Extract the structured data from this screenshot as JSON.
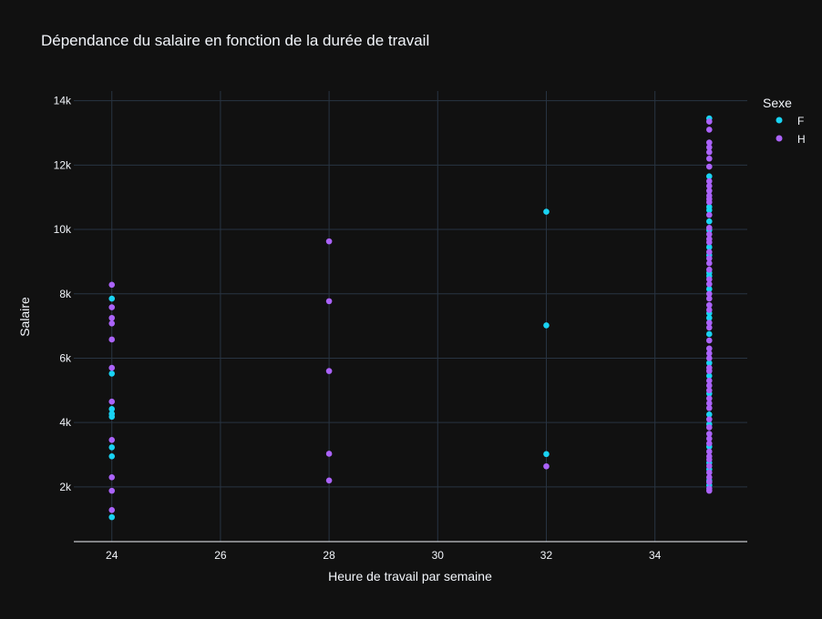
{
  "chart_data": {
    "type": "scatter",
    "title": "Dépendance du salaire en fonction de la durée de travail",
    "xlabel": "Heure de travail par semaine",
    "ylabel": "Salaire",
    "xlim": [
      23.3,
      35.7
    ],
    "ylim": [
      300,
      14300
    ],
    "x_ticks": [
      24,
      26,
      28,
      30,
      32,
      34
    ],
    "x_tick_labels": [
      "24",
      "26",
      "28",
      "30",
      "32",
      "34"
    ],
    "y_ticks": [
      2000,
      4000,
      6000,
      8000,
      10000,
      12000,
      14000
    ],
    "y_tick_labels": [
      "2k",
      "4k",
      "6k",
      "8k",
      "10k",
      "12k",
      "14k"
    ],
    "grid": true,
    "legend": {
      "title": "Sexe",
      "position": "top-right"
    },
    "series": [
      {
        "name": "F",
        "color": "#19d3f3",
        "points": [
          [
            24,
            7850
          ],
          [
            24,
            5520
          ],
          [
            24,
            4420
          ],
          [
            24,
            4270
          ],
          [
            24,
            4180
          ],
          [
            24,
            3230
          ],
          [
            24,
            2950
          ],
          [
            24,
            1060
          ],
          [
            32,
            10550
          ],
          [
            32,
            7020
          ],
          [
            32,
            3020
          ],
          [
            35,
            13450
          ],
          [
            35,
            11650
          ],
          [
            35,
            10700
          ],
          [
            35,
            10600
          ],
          [
            35,
            10250
          ],
          [
            35,
            9980
          ],
          [
            35,
            9450
          ],
          [
            35,
            9200
          ],
          [
            35,
            8650
          ],
          [
            35,
            8550
          ],
          [
            35,
            8150
          ],
          [
            35,
            7400
          ],
          [
            35,
            7250
          ],
          [
            35,
            6750
          ],
          [
            35,
            5850
          ],
          [
            35,
            5450
          ],
          [
            35,
            4900
          ],
          [
            35,
            4250
          ],
          [
            35,
            3950
          ],
          [
            35,
            3250
          ],
          [
            35,
            2750
          ],
          [
            35,
            2550
          ],
          [
            35,
            2200
          ],
          [
            35,
            2050
          ]
        ]
      },
      {
        "name": "H",
        "color": "#ab63fa",
        "points": [
          [
            24,
            8280
          ],
          [
            24,
            7580
          ],
          [
            24,
            7250
          ],
          [
            24,
            7080
          ],
          [
            24,
            6580
          ],
          [
            24,
            5700
          ],
          [
            24,
            4650
          ],
          [
            24,
            3460
          ],
          [
            24,
            2300
          ],
          [
            24,
            1880
          ],
          [
            24,
            1280
          ],
          [
            28,
            9630
          ],
          [
            28,
            7770
          ],
          [
            28,
            5600
          ],
          [
            28,
            3030
          ],
          [
            28,
            2200
          ],
          [
            32,
            2640
          ],
          [
            35,
            13350
          ],
          [
            35,
            13100
          ],
          [
            35,
            12700
          ],
          [
            35,
            12550
          ],
          [
            35,
            12400
          ],
          [
            35,
            12200
          ],
          [
            35,
            11950
          ],
          [
            35,
            11500
          ],
          [
            35,
            11350
          ],
          [
            35,
            11200
          ],
          [
            35,
            11050
          ],
          [
            35,
            10950
          ],
          [
            35,
            10850
          ],
          [
            35,
            10450
          ],
          [
            35,
            10050
          ],
          [
            35,
            9850
          ],
          [
            35,
            9700
          ],
          [
            35,
            9600
          ],
          [
            35,
            9300
          ],
          [
            35,
            9100
          ],
          [
            35,
            8950
          ],
          [
            35,
            8750
          ],
          [
            35,
            8450
          ],
          [
            35,
            8300
          ],
          [
            35,
            8000
          ],
          [
            35,
            7850
          ],
          [
            35,
            7650
          ],
          [
            35,
            7500
          ],
          [
            35,
            7100
          ],
          [
            35,
            6950
          ],
          [
            35,
            6550
          ],
          [
            35,
            6300
          ],
          [
            35,
            6150
          ],
          [
            35,
            6000
          ],
          [
            35,
            5700
          ],
          [
            35,
            5600
          ],
          [
            35,
            5300
          ],
          [
            35,
            5150
          ],
          [
            35,
            5000
          ],
          [
            35,
            4750
          ],
          [
            35,
            4600
          ],
          [
            35,
            4450
          ],
          [
            35,
            4100
          ],
          [
            35,
            3850
          ],
          [
            35,
            3650
          ],
          [
            35,
            3500
          ],
          [
            35,
            3350
          ],
          [
            35,
            3100
          ],
          [
            35,
            2950
          ],
          [
            35,
            2850
          ],
          [
            35,
            2650
          ],
          [
            35,
            2450
          ],
          [
            35,
            2300
          ],
          [
            35,
            2150
          ],
          [
            35,
            1950
          ],
          [
            35,
            1880
          ]
        ]
      }
    ]
  }
}
